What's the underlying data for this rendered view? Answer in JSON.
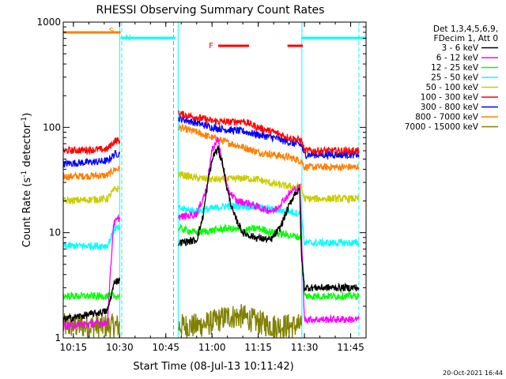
{
  "chart_data": {
    "type": "line",
    "title": "RHESSI Observing Summary Count Rates",
    "xlabel": "Start Time (08-Jul-13 10:11:42)",
    "ylabel": "Count Rate (s⁻¹ detector⁻¹)",
    "ylabel_parts": {
      "main": "Count Rate (s",
      "sup1": "-1",
      "mid": " detector",
      "sup2": "-1",
      "end": ")"
    },
    "x_scale": "time",
    "y_scale": "log",
    "xlim": [
      "10:11:42",
      "11:50:00"
    ],
    "ylim": [
      1,
      1000
    ],
    "x_tick_labels": [
      "10:15",
      "10:30",
      "10:45",
      "11:00",
      "11:15",
      "11:30",
      "11:45"
    ],
    "x_tick_values": [
      "10:15",
      "10:30",
      "10:45",
      "11:00",
      "11:15",
      "11:30",
      "11:45"
    ],
    "y_tick_labels": [
      "1",
      "10",
      "100",
      "1000"
    ],
    "y_tick_values": [
      1,
      10,
      100,
      1000
    ],
    "legend_header": [
      "Det 1,3,4,5,6,9,",
      "FDecim 1, Att 0"
    ],
    "legend_position": "right-outside",
    "timestamp": "20-Oct-2021 16:44",
    "annotations": [
      {
        "label": "S",
        "color": "#ff7f00",
        "x_start": "10:11:42",
        "x_end": "10:30:20"
      },
      {
        "label": "N",
        "color": "#00ffff",
        "x_start": "10:30:20",
        "x_end": "10:48:10"
      },
      {
        "label": "F",
        "color": "#ff0000",
        "x_start": "11:02:00",
        "x_end": "11:12:00"
      },
      {
        "label": "",
        "color": "#ff0000",
        "x_start": "11:24:30",
        "x_end": "11:29:30"
      },
      {
        "label": "",
        "color": "#00ffff",
        "x_start": "11:29:00",
        "x_end": "11:50:00"
      }
    ],
    "vlines": [
      {
        "x": "10:30:00",
        "color": "#00ffff",
        "style": "solid"
      },
      {
        "x": "10:30:40",
        "color": "#00ffff",
        "style": "dashed"
      },
      {
        "x": "10:47:30",
        "color": "#ff7f00",
        "style": "dashed"
      },
      {
        "x": "10:49:00",
        "color": "#00ffff",
        "style": "solid"
      },
      {
        "x": "11:29:10",
        "color": "#00ffff",
        "style": "solid"
      },
      {
        "x": "11:47:40",
        "color": "#00ffff",
        "style": "dashed"
      }
    ],
    "series": [
      {
        "name": "3 - 6 keV",
        "color": "#000000",
        "points": [
          [
            "10:11:42",
            1.5
          ],
          [
            "10:26:00",
            1.8
          ],
          [
            "10:28:30",
            3.5
          ],
          [
            "10:30:00",
            3.5
          ],
          [
            "10:49:00",
            null
          ],
          [
            "10:49:10",
            8.0
          ],
          [
            "10:55:00",
            8.5
          ],
          [
            "10:57:00",
            14
          ],
          [
            "10:59:00",
            35
          ],
          [
            "11:00:30",
            55
          ],
          [
            "11:02:00",
            62
          ],
          [
            "11:03:30",
            45
          ],
          [
            "11:05:00",
            25
          ],
          [
            "11:07:00",
            15
          ],
          [
            "11:10:00",
            10
          ],
          [
            "11:14:00",
            9
          ],
          [
            "11:19:00",
            8.5
          ],
          [
            "11:22:00",
            11
          ],
          [
            "11:25:00",
            18
          ],
          [
            "11:27:00",
            24
          ],
          [
            "11:28:30",
            25
          ],
          [
            "11:29:00",
            6
          ],
          [
            "11:30:00",
            3.0
          ],
          [
            "11:47:40",
            3.0
          ]
        ]
      },
      {
        "name": "6 - 12 keV",
        "color": "#ff00ff",
        "points": [
          [
            "10:11:42",
            1.3
          ],
          [
            "10:26:00",
            1.4
          ],
          [
            "10:28:00",
            12
          ],
          [
            "10:30:00",
            14
          ],
          [
            "10:49:00",
            null
          ],
          [
            "10:49:10",
            14
          ],
          [
            "10:55:00",
            15
          ],
          [
            "10:58:00",
            25
          ],
          [
            "11:00:00",
            60
          ],
          [
            "11:02:00",
            80
          ],
          [
            "11:03:00",
            50
          ],
          [
            "11:05:00",
            26
          ],
          [
            "11:08:00",
            20
          ],
          [
            "11:12:00",
            19
          ],
          [
            "11:16:00",
            17
          ],
          [
            "11:20:00",
            16
          ],
          [
            "11:23:00",
            20
          ],
          [
            "11:26:00",
            25
          ],
          [
            "11:28:30",
            27
          ],
          [
            "11:30:00",
            1.5
          ],
          [
            "11:47:40",
            1.5
          ]
        ]
      },
      {
        "name": "12 - 25 keV",
        "color": "#00ff00",
        "points": [
          [
            "10:11:42",
            2.5
          ],
          [
            "10:30:00",
            2.5
          ],
          [
            "10:49:00",
            null
          ],
          [
            "10:49:10",
            11
          ],
          [
            "10:55:00",
            10
          ],
          [
            "11:00:00",
            10.5
          ],
          [
            "11:05:00",
            11
          ],
          [
            "11:10:00",
            10.5
          ],
          [
            "11:15:00",
            11
          ],
          [
            "11:20:00",
            10
          ],
          [
            "11:25:00",
            9.5
          ],
          [
            "11:29:00",
            9
          ],
          [
            "11:30:00",
            2.5
          ],
          [
            "11:47:40",
            2.5
          ]
        ]
      },
      {
        "name": "25 - 50 keV",
        "color": "#00ffff",
        "points": [
          [
            "10:11:42",
            7.5
          ],
          [
            "10:26:00",
            7.5
          ],
          [
            "10:28:30",
            11
          ],
          [
            "10:30:00",
            11
          ],
          [
            "10:49:00",
            null
          ],
          [
            "10:49:10",
            17
          ],
          [
            "10:55:00",
            16
          ],
          [
            "11:00:00",
            17
          ],
          [
            "11:05:00",
            18
          ],
          [
            "11:10:00",
            18
          ],
          [
            "11:15:00",
            17.5
          ],
          [
            "11:20:00",
            16.5
          ],
          [
            "11:25:00",
            16
          ],
          [
            "11:29:00",
            15
          ],
          [
            "11:30:00",
            8
          ],
          [
            "11:47:40",
            8
          ]
        ]
      },
      {
        "name": "50 - 100 keV",
        "color": "#cccc00",
        "points": [
          [
            "10:11:42",
            20
          ],
          [
            "10:26:00",
            21
          ],
          [
            "10:28:30",
            26
          ],
          [
            "10:30:00",
            26
          ],
          [
            "10:49:00",
            null
          ],
          [
            "10:49:10",
            36
          ],
          [
            "10:55:00",
            33
          ],
          [
            "11:00:00",
            32
          ],
          [
            "11:05:00",
            32
          ],
          [
            "11:10:00",
            33
          ],
          [
            "11:15:00",
            32
          ],
          [
            "11:20:00",
            29
          ],
          [
            "11:25:00",
            27.5
          ],
          [
            "11:29:00",
            27
          ],
          [
            "11:30:00",
            21
          ],
          [
            "11:47:40",
            21
          ]
        ]
      },
      {
        "name": "100 - 300 keV",
        "color": "#ff0000",
        "points": [
          [
            "10:11:42",
            60
          ],
          [
            "10:26:00",
            62
          ],
          [
            "10:28:30",
            75
          ],
          [
            "10:30:00",
            75
          ],
          [
            "10:49:00",
            null
          ],
          [
            "10:49:10",
            135
          ],
          [
            "10:55:00",
            125
          ],
          [
            "11:00:00",
            115
          ],
          [
            "11:05:00",
            112
          ],
          [
            "11:10:00",
            115
          ],
          [
            "11:15:00",
            100
          ],
          [
            "11:20:00",
            90
          ],
          [
            "11:25:00",
            80
          ],
          [
            "11:29:00",
            75
          ],
          [
            "11:30:00",
            60
          ],
          [
            "11:47:40",
            60
          ]
        ]
      },
      {
        "name": "300 - 800 keV",
        "color": "#0000ff",
        "points": [
          [
            "10:11:42",
            45
          ],
          [
            "10:26:00",
            48
          ],
          [
            "10:28:30",
            56
          ],
          [
            "10:30:00",
            56
          ],
          [
            "10:49:00",
            null
          ],
          [
            "10:49:10",
            122
          ],
          [
            "10:55:00",
            110
          ],
          [
            "11:00:00",
            100
          ],
          [
            "11:05:00",
            95
          ],
          [
            "11:10:00",
            92
          ],
          [
            "11:15:00",
            85
          ],
          [
            "11:20:00",
            80
          ],
          [
            "11:25:00",
            72
          ],
          [
            "11:29:00",
            68
          ],
          [
            "11:30:00",
            55
          ],
          [
            "11:47:40",
            55
          ]
        ]
      },
      {
        "name": "800 - 7000 keV",
        "color": "#ff7f00",
        "points": [
          [
            "10:11:42",
            34
          ],
          [
            "10:26:00",
            35
          ],
          [
            "10:28:30",
            40
          ],
          [
            "10:30:00",
            40
          ],
          [
            "10:49:00",
            null
          ],
          [
            "10:49:10",
            100
          ],
          [
            "10:55:00",
            90
          ],
          [
            "11:00:00",
            80
          ],
          [
            "11:05:00",
            72
          ],
          [
            "11:10:00",
            65
          ],
          [
            "11:15:00",
            58
          ],
          [
            "11:20:00",
            55
          ],
          [
            "11:25:00",
            52
          ],
          [
            "11:29:00",
            48
          ],
          [
            "11:30:00",
            42
          ],
          [
            "11:47:40",
            42
          ]
        ]
      },
      {
        "name": "7000 - 15000 keV",
        "color": "#808000",
        "points": [
          [
            "10:11:42",
            1.3
          ],
          [
            "10:30:00",
            1.3
          ],
          [
            "10:49:00",
            null
          ],
          [
            "10:49:10",
            1.3
          ],
          [
            "10:55:00",
            1.3
          ],
          [
            "11:00:00",
            1.4
          ],
          [
            "11:05:00",
            1.6
          ],
          [
            "11:10:00",
            1.6
          ],
          [
            "11:15:00",
            1.4
          ],
          [
            "11:20:00",
            1.3
          ],
          [
            "11:29:00",
            1.3
          ]
        ]
      }
    ]
  }
}
